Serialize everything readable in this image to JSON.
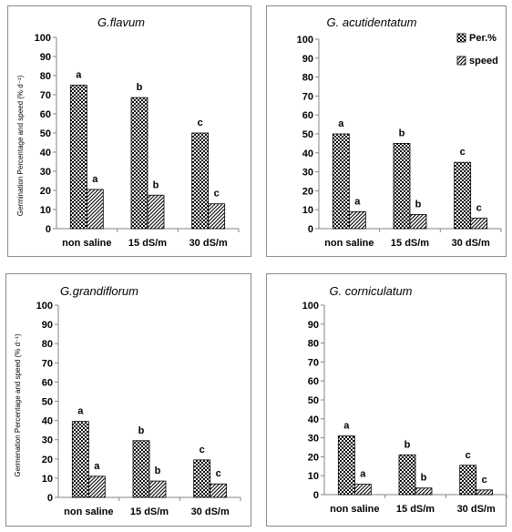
{
  "figure": {
    "panels": [
      {
        "title": "G.flavum",
        "ylabel": "Germination Percentage and speed (% d⁻¹)"
      },
      {
        "title": "G. acutidentatum",
        "ylabel": ""
      },
      {
        "title": "G.grandiflorum",
        "ylabel": "Germenation Percentage and speed (% d⁻¹)"
      },
      {
        "title": "G. corniculatum",
        "ylabel": ""
      }
    ]
  },
  "chart_data": [
    {
      "type": "bar",
      "title": "G.flavum",
      "ylabel": "Germination Percentage and speed (% d⁻¹)",
      "categories": [
        "non saline",
        "15 dS/m",
        "30 dS/m"
      ],
      "ylim": [
        0,
        100
      ],
      "yticks": [
        0,
        10,
        20,
        30,
        40,
        50,
        60,
        70,
        80,
        90,
        100
      ],
      "series": [
        {
          "name": "Per.%",
          "values": [
            75,
            68.5,
            50
          ],
          "labels": [
            "a",
            "b",
            "c"
          ]
        },
        {
          "name": "speed",
          "values": [
            20.5,
            17.5,
            13
          ],
          "labels": [
            "a",
            "b",
            "c"
          ]
        }
      ],
      "legend": "none",
      "grid": false
    },
    {
      "type": "bar",
      "title": "G. acutidentatum",
      "ylabel": "",
      "categories": [
        "non saline",
        "15 dS/m",
        "30 dS/m"
      ],
      "ylim": [
        0,
        100
      ],
      "yticks": [
        0,
        10,
        20,
        30,
        40,
        50,
        60,
        70,
        80,
        90,
        100
      ],
      "series": [
        {
          "name": "Per.%",
          "values": [
            50,
            45,
            35
          ],
          "labels": [
            "a",
            "b",
            "c"
          ]
        },
        {
          "name": "speed",
          "values": [
            9,
            7.5,
            5.5
          ],
          "labels": [
            "a",
            "b",
            "c"
          ]
        }
      ],
      "legend": "top-right",
      "grid": false
    },
    {
      "type": "bar",
      "title": "G.grandiflorum",
      "ylabel": "Germenation Percentage and speed (% d⁻¹)",
      "categories": [
        "non saline",
        "15 dS/m",
        "30 dS/m"
      ],
      "ylim": [
        0,
        100
      ],
      "yticks": [
        0,
        10,
        20,
        30,
        40,
        50,
        60,
        70,
        80,
        90,
        100
      ],
      "series": [
        {
          "name": "Per.%",
          "values": [
            39.5,
            29.5,
            19.5
          ],
          "labels": [
            "a",
            "b",
            "c"
          ]
        },
        {
          "name": "speed",
          "values": [
            11,
            8.5,
            7
          ],
          "labels": [
            "a",
            "b",
            "c"
          ]
        }
      ],
      "legend": "none",
      "grid": false
    },
    {
      "type": "bar",
      "title": "G. corniculatum",
      "ylabel": "",
      "categories": [
        "non saline",
        "15 dS/m",
        "30 dS/m"
      ],
      "ylim": [
        0,
        100
      ],
      "yticks": [
        0,
        10,
        20,
        30,
        40,
        50,
        60,
        70,
        80,
        90,
        100
      ],
      "series": [
        {
          "name": "Per.%",
          "values": [
            31,
            21,
            15.5
          ],
          "labels": [
            "a",
            "b",
            "c"
          ]
        },
        {
          "name": "speed",
          "values": [
            5.5,
            3.5,
            2.5
          ],
          "labels": [
            "a",
            "b",
            "c"
          ]
        }
      ],
      "legend": "none",
      "grid": false
    }
  ]
}
